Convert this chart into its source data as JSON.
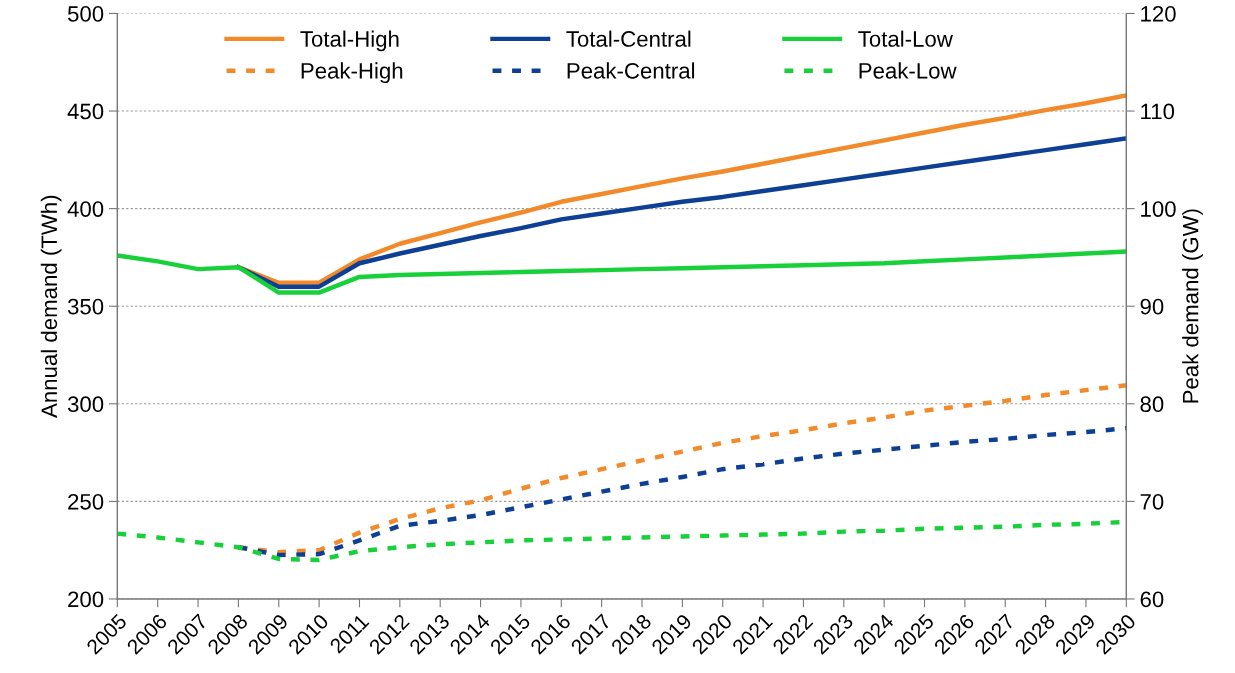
{
  "chart_data": {
    "type": "line",
    "ylabel": "Annual demand (TWh)",
    "y2label": "Peak demand (GW)",
    "categories": [
      "2005",
      "2006",
      "2007",
      "2008",
      "2009",
      "2010",
      "2011",
      "2012",
      "2013",
      "2014",
      "2015",
      "2016",
      "2017",
      "2018",
      "2019",
      "2020",
      "2021",
      "2022",
      "2023",
      "2024",
      "2025",
      "2026",
      "2027",
      "2028",
      "2029",
      "2030"
    ],
    "ylim": [
      200,
      500
    ],
    "yticks": [
      200,
      250,
      300,
      350,
      400,
      450,
      500
    ],
    "y2lim": [
      60,
      120
    ],
    "y2ticks": [
      60,
      70,
      80,
      90,
      100,
      110,
      120
    ],
    "grid": "y",
    "legend": "top",
    "marker": "none",
    "series": [
      {
        "name": "Total-High",
        "color": "#f28a2a",
        "line_style": "solid",
        "values": [
          null,
          null,
          null,
          370,
          362,
          362,
          374,
          382,
          387.5,
          393,
          398,
          403.5,
          407.5,
          411.5,
          415.5,
          419,
          423,
          427,
          431,
          435,
          439,
          443,
          446.5,
          450.5,
          454,
          458
        ]
      },
      {
        "name": "Total-Central",
        "color": "#0d3f94",
        "line_style": "solid",
        "values": [
          null,
          null,
          null,
          370,
          360,
          360,
          372,
          377,
          381.5,
          386,
          390,
          394.5,
          397.5,
          400.5,
          403.5,
          406,
          409,
          412,
          415,
          418,
          421,
          424,
          427,
          430,
          433,
          436
        ]
      },
      {
        "name": "Total-Low",
        "color": "#18d13a",
        "line_style": "solid",
        "values": [
          376,
          373,
          369,
          370,
          357,
          357,
          365,
          366,
          366.5,
          367,
          367.5,
          368,
          368.5,
          369,
          369.5,
          370,
          370.5,
          371,
          371.5,
          372,
          373,
          374,
          375,
          376,
          377,
          378
        ]
      },
      {
        "name": "Peak-High",
        "color": "#f28a2a",
        "line_style": "dashed",
        "axis": "y2",
        "values": [
          null,
          null,
          null,
          65.3,
          64.8,
          65.0,
          66.8,
          68.2,
          69.3,
          70.1,
          71.3,
          72.4,
          73.3,
          74.2,
          75.1,
          76.0,
          76.7,
          77.3,
          78.0,
          78.6,
          79.3,
          79.8,
          80.3,
          80.9,
          81.4,
          81.9
        ]
      },
      {
        "name": "Peak-Central",
        "color": "#0d3f94",
        "line_style": "dashed",
        "axis": "y2",
        "values": [
          null,
          null,
          null,
          65.3,
          64.5,
          64.6,
          66.0,
          67.5,
          68.0,
          68.6,
          69.4,
          70.2,
          71.0,
          71.8,
          72.5,
          73.3,
          73.8,
          74.4,
          74.9,
          75.3,
          75.7,
          76.1,
          76.4,
          76.8,
          77.1,
          77.5
        ]
      },
      {
        "name": "Peak-Low",
        "color": "#18d13a",
        "line_style": "dashed",
        "axis": "y2",
        "values": [
          66.7,
          66.3,
          65.8,
          65.3,
          64.1,
          64.0,
          64.9,
          65.3,
          65.6,
          65.8,
          66.0,
          66.1,
          66.2,
          66.3,
          66.4,
          66.5,
          66.6,
          66.7,
          66.9,
          67.0,
          67.2,
          67.3,
          67.4,
          67.6,
          67.7,
          67.9
        ]
      }
    ]
  }
}
